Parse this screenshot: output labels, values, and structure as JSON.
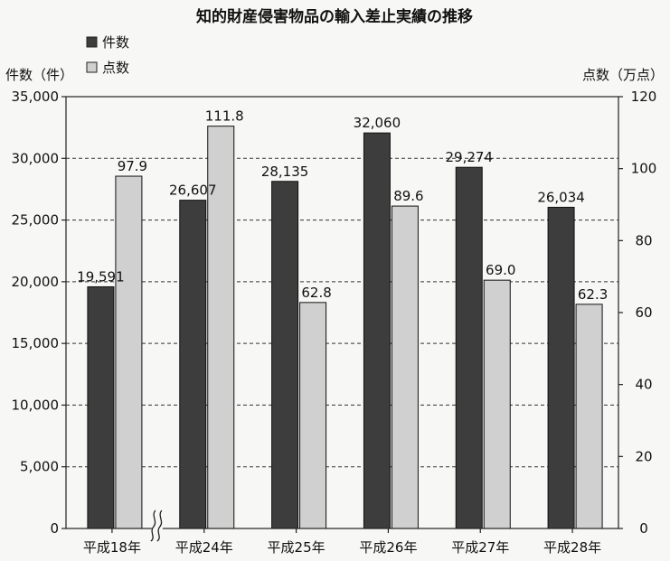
{
  "title": "知的財産侵害物品の輸入差止実績の推移",
  "legend": {
    "items": [
      {
        "label": "件数",
        "color": "#3d3d3d"
      },
      {
        "label": "点数",
        "color": "#d0d0d0"
      }
    ]
  },
  "chart_data": {
    "type": "bar",
    "title": "知的財産侵害物品の輸入差止実績の推移",
    "categories": [
      "平成18年",
      "平成24年",
      "平成25年",
      "平成26年",
      "平成27年",
      "平成28年"
    ],
    "series": [
      {
        "name": "件数",
        "axis": "left",
        "color": "#3d3d3d",
        "values": [
          19591,
          26607,
          28135,
          32060,
          29274,
          26034
        ],
        "labels": [
          "19,591",
          "26,607",
          "28,135",
          "32,060",
          "29,274",
          "26,034"
        ]
      },
      {
        "name": "点数",
        "axis": "right",
        "color": "#d0d0d0",
        "values": [
          97.9,
          111.8,
          62.8,
          89.6,
          69.0,
          62.3
        ],
        "labels": [
          "97.9",
          "111.8",
          "62.8",
          "89.6",
          "69.0",
          "62.3"
        ]
      }
    ],
    "y_left": {
      "label": "件数（件）",
      "range": [
        0,
        35000
      ],
      "ticks": [
        "0",
        "5,000",
        "10,000",
        "15,000",
        "20,000",
        "25,000",
        "30,000",
        "35,000"
      ]
    },
    "y_right": {
      "label": "点数（万点）",
      "range": [
        0,
        120
      ],
      "ticks": [
        "0",
        "20",
        "40",
        "60",
        "80",
        "100",
        "120"
      ]
    },
    "gridlines": "dashed",
    "axis_break": "between 平成18年 and 平成24年",
    "legend_position": "top-left"
  }
}
